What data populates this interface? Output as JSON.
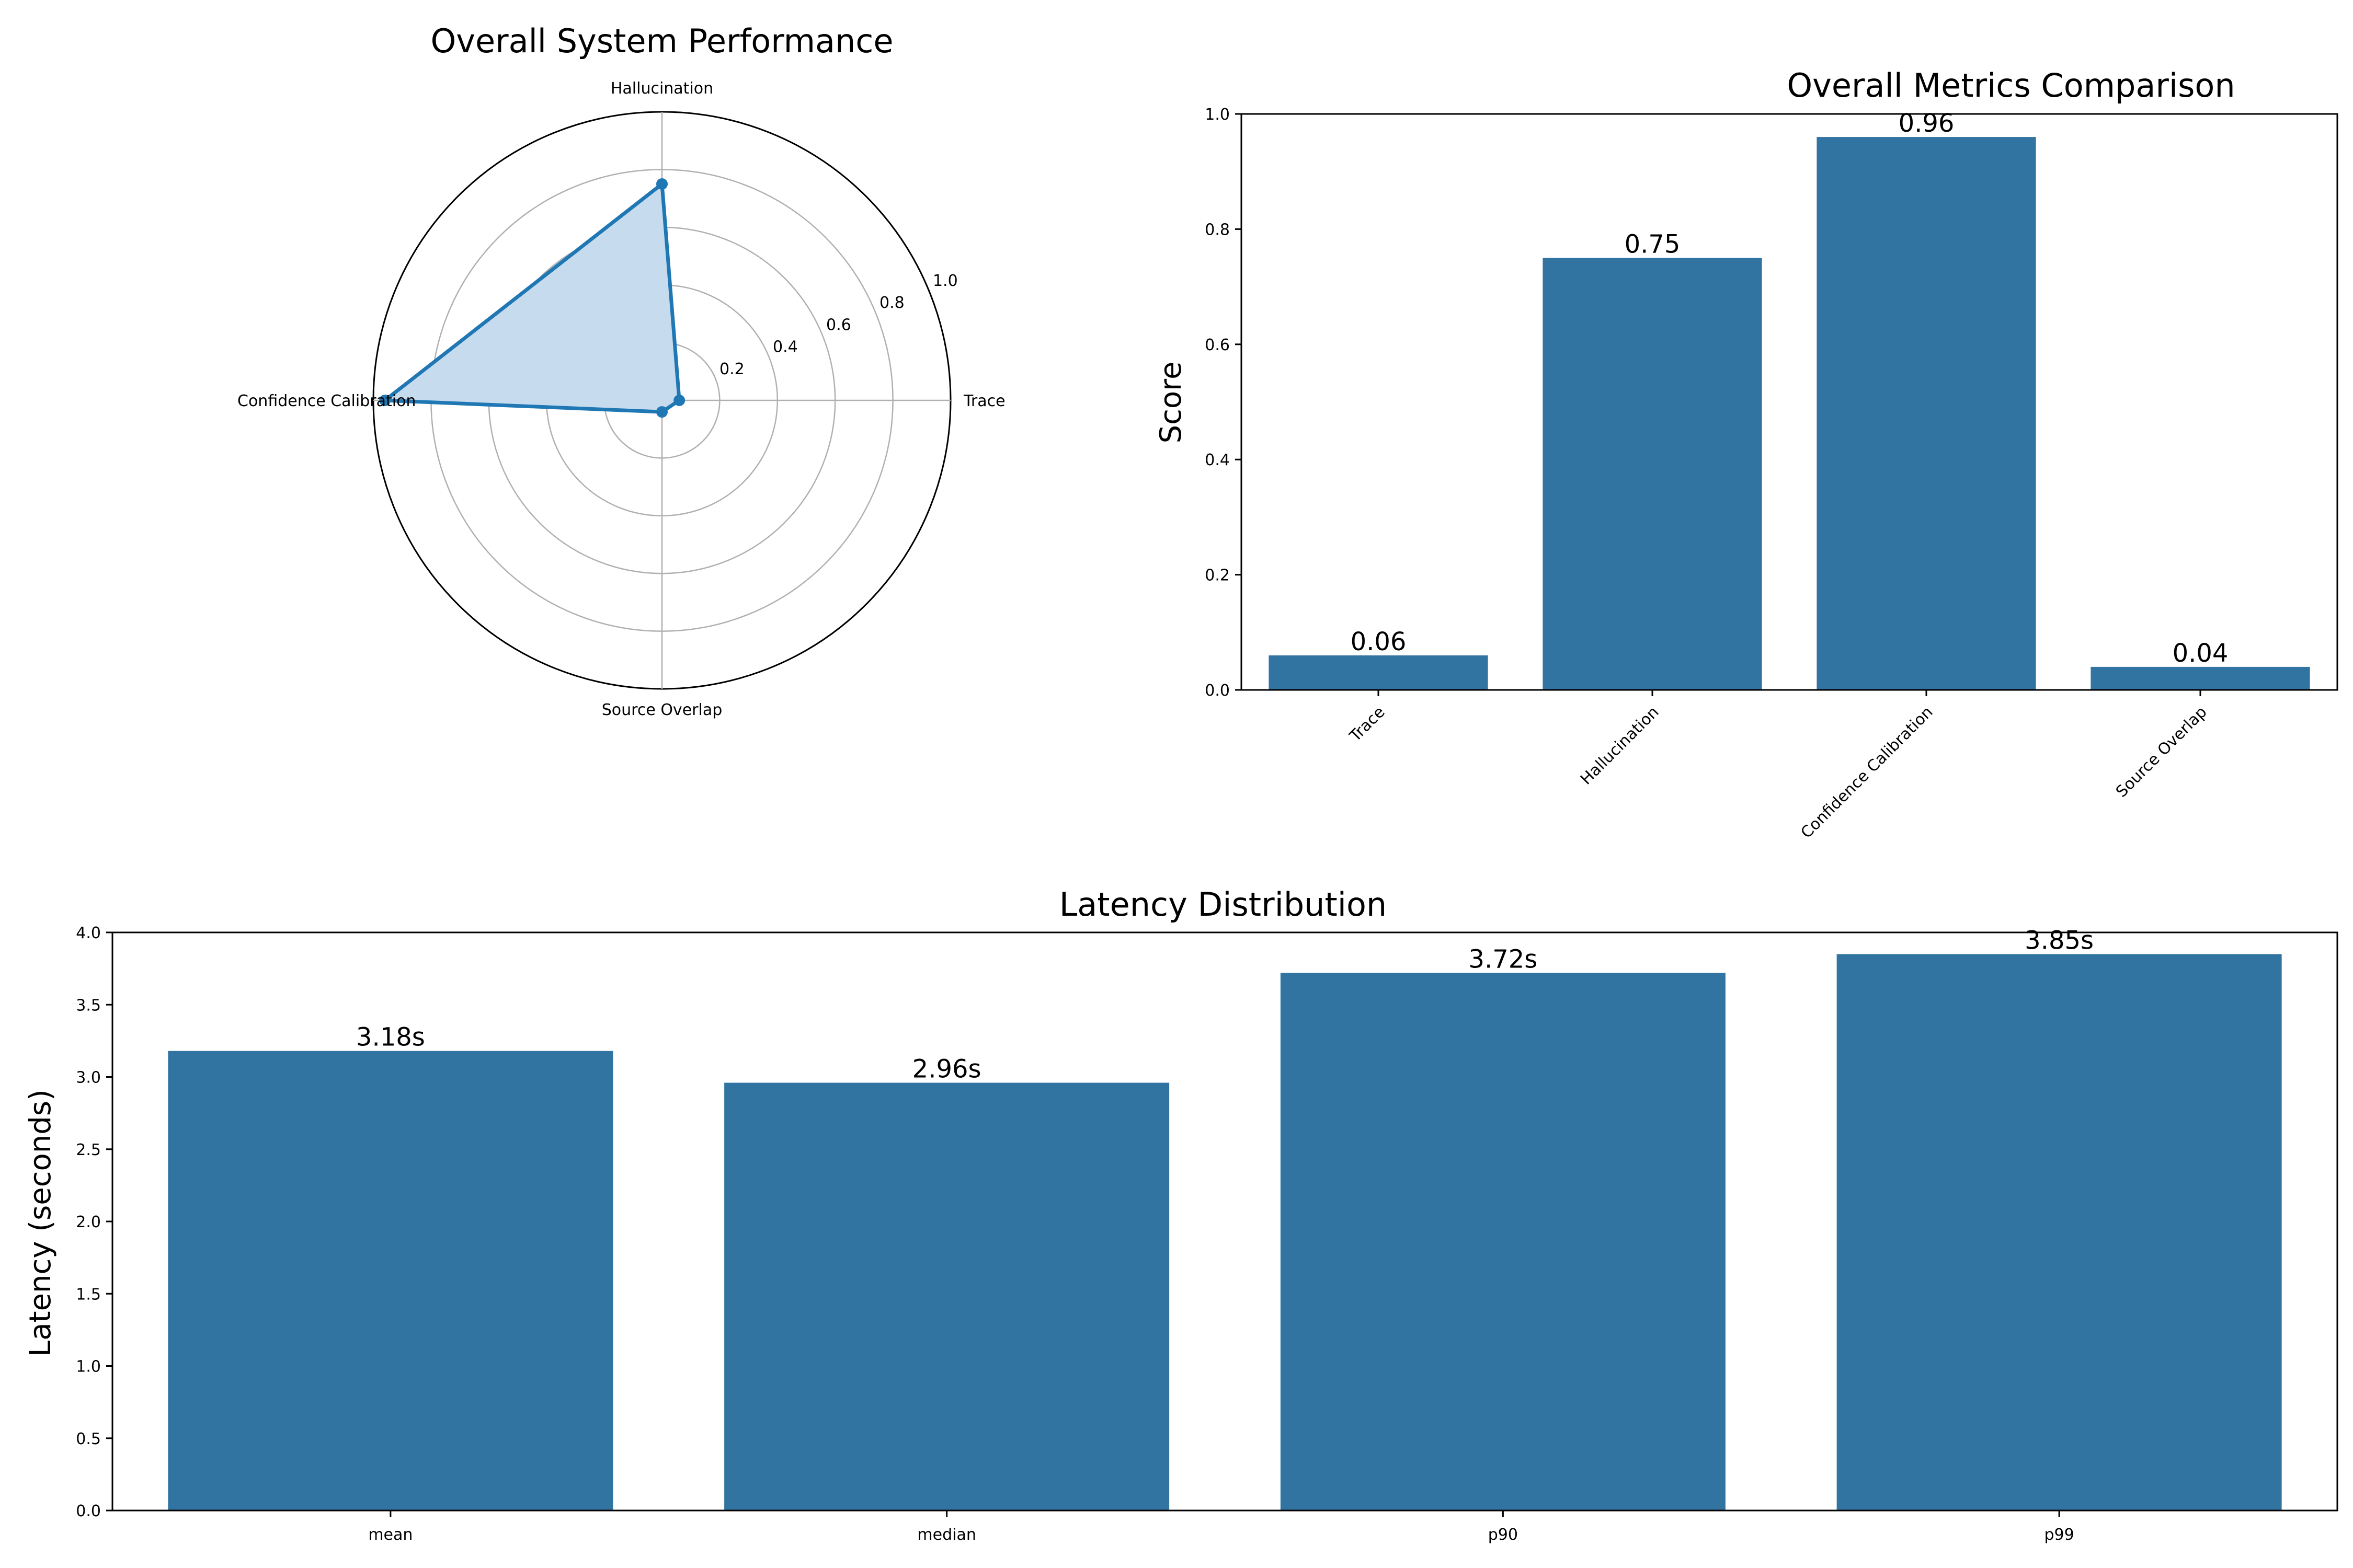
{
  "colors": {
    "bar": "#3274a1",
    "radar_line": "#1f77b4",
    "radar_fill": "#c6dcee",
    "grid": "#b0b0b0"
  },
  "chart_data": [
    {
      "type": "radar",
      "title": "Overall System Performance",
      "axes": [
        "Trace",
        "Hallucination",
        "Confidence Calibration",
        "Source Overlap"
      ],
      "values": [
        0.06,
        0.75,
        0.96,
        0.04
      ],
      "rlim": [
        0,
        1.0
      ],
      "radial_ticks": [
        "0.2",
        "0.4",
        "0.6",
        "0.8",
        "1.0"
      ],
      "grid": true
    },
    {
      "type": "bar",
      "title": "Overall Metrics Comparison",
      "categories": [
        "Trace",
        "Hallucination",
        "Confidence Calibration",
        "Source Overlap"
      ],
      "values": [
        0.06,
        0.75,
        0.96,
        0.04
      ],
      "data_labels": [
        "0.06",
        "0.75",
        "0.96",
        "0.04"
      ],
      "xlabel": "",
      "ylabel": "Score",
      "ylim": [
        0,
        1.0
      ],
      "yticks": [
        "0.0",
        "0.2",
        "0.4",
        "0.6",
        "0.8",
        "1.0"
      ],
      "grid": false
    },
    {
      "type": "bar",
      "title": "Latency Distribution",
      "categories": [
        "mean",
        "median",
        "p90",
        "p99"
      ],
      "values": [
        3.18,
        2.96,
        3.72,
        3.85
      ],
      "data_labels": [
        "3.18s",
        "2.96s",
        "3.72s",
        "3.85s"
      ],
      "xlabel": "",
      "ylabel": "Latency (seconds)",
      "ylim": [
        0,
        4.0
      ],
      "yticks": [
        "0.0",
        "0.5",
        "1.0",
        "1.5",
        "2.0",
        "2.5",
        "3.0",
        "3.5",
        "4.0"
      ],
      "grid": false
    }
  ]
}
